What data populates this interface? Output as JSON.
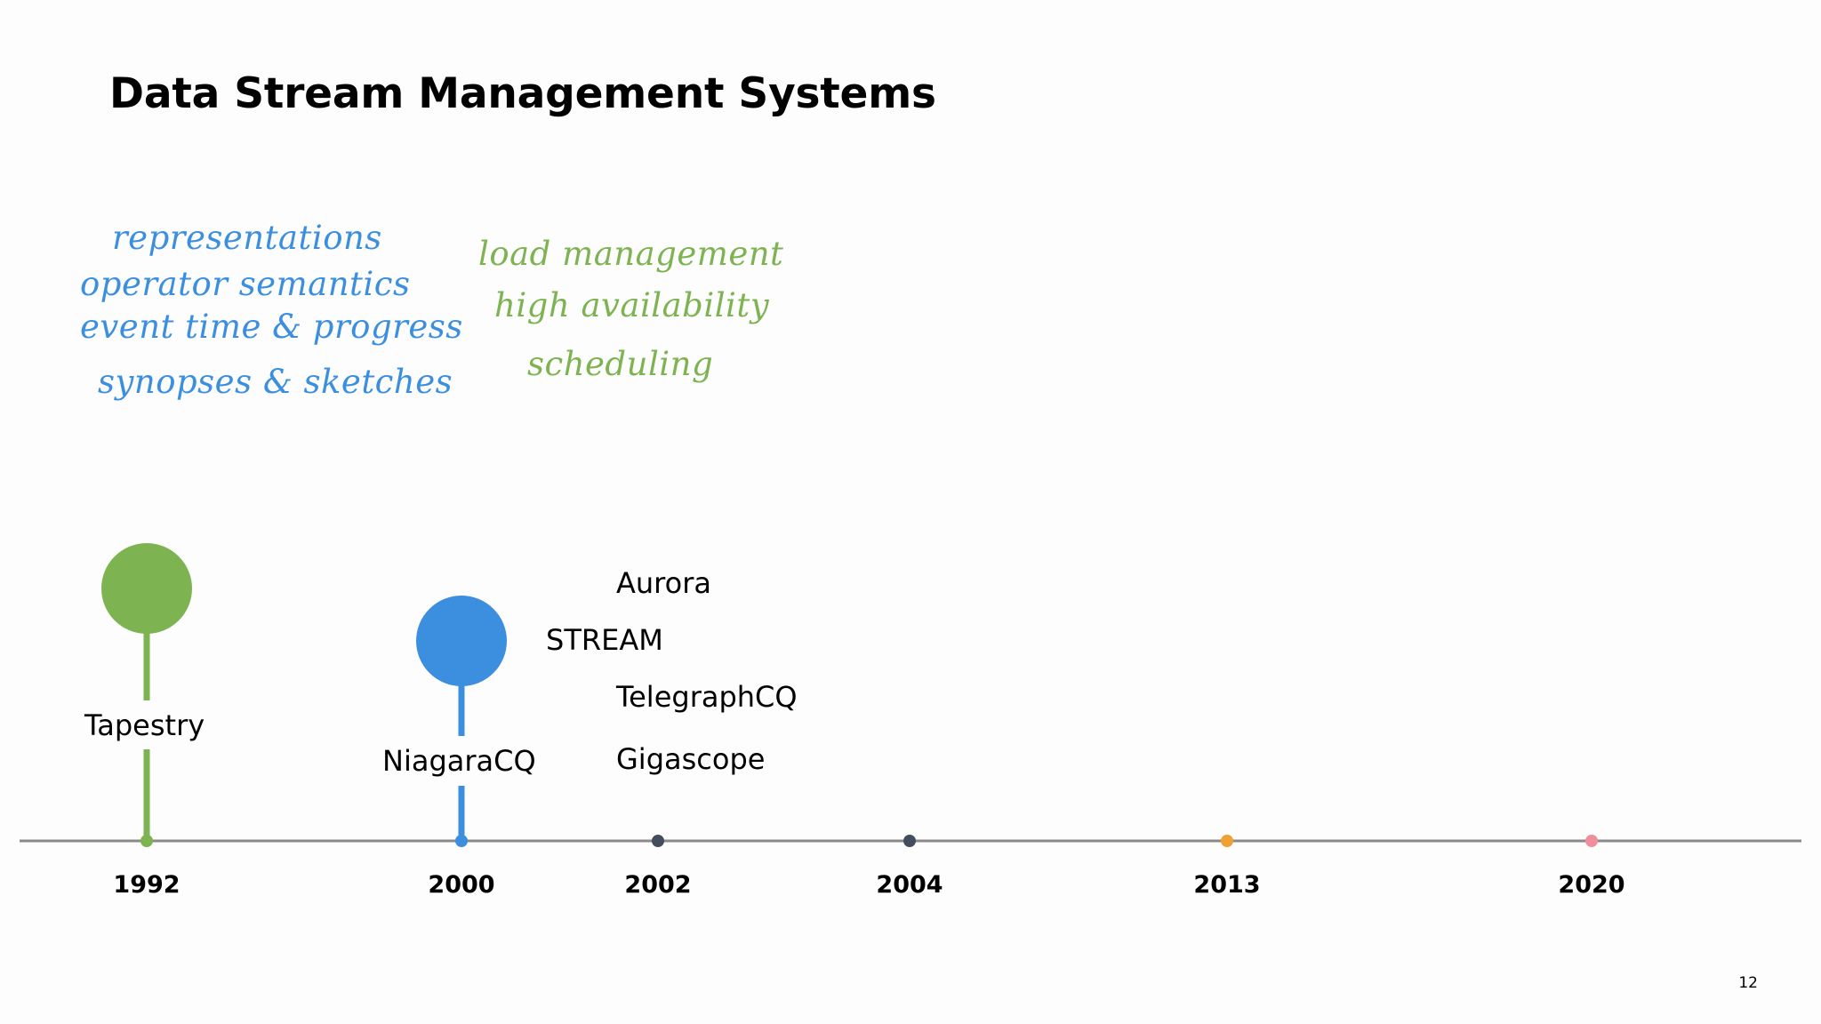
{
  "slide": {
    "title": "Data Stream Management Systems",
    "page_number": "12"
  },
  "annotations": {
    "blue": [
      "representations",
      "operator semantics",
      "event time & progress",
      "synopses & sketches"
    ],
    "green": [
      "load management",
      "high availability",
      "scheduling"
    ]
  },
  "timeline": {
    "years": [
      "1992",
      "2000",
      "2002",
      "2004",
      "2013",
      "2020"
    ],
    "year_colors": [
      "#7db351",
      "#3b8fde",
      "#434d5e",
      "#434d5e",
      "#f0a131",
      "#ee8f9b"
    ],
    "milestones": [
      {
        "year": "1992",
        "color": "#7db351",
        "systems": [
          "Tapestry"
        ]
      },
      {
        "year": "2000",
        "color": "#3b8fde",
        "systems": [
          "NiagaraCQ"
        ]
      }
    ],
    "systems_around_2002": [
      "Aurora",
      "STREAM",
      "TelegraphCQ",
      "Gigascope"
    ]
  },
  "colors": {
    "axis": "#8a8a8a",
    "green": "#7db351",
    "blue": "#3b8fde"
  }
}
